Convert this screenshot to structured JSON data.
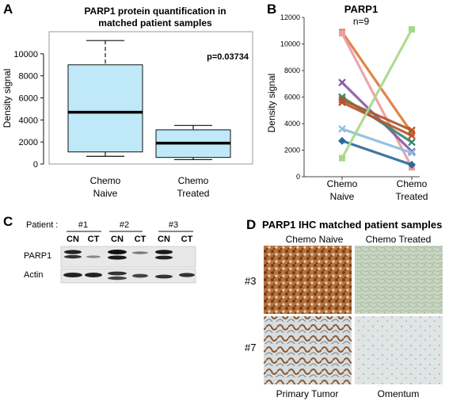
{
  "panels": {
    "a": {
      "letter": "A",
      "title_line1": "PARP1 protein quantification in",
      "title_line2": "matched patient samples",
      "pvalue": "p=0.03734"
    },
    "b": {
      "letter": "B",
      "title": "PARP1",
      "subtitle": "n=9"
    },
    "c": {
      "letter": "C",
      "patient_label": "Patient :",
      "patients": [
        "#1",
        "#2",
        "#3"
      ],
      "lane_labels": [
        "CN",
        "CT",
        "CN",
        "CT",
        "CN",
        "CT"
      ],
      "rows": [
        "PARP1",
        "Actin"
      ]
    },
    "d": {
      "letter": "D",
      "title": "PARP1 IHC matched patient samples",
      "col_labels": [
        "Chemo Naive",
        "Chemo Treated"
      ],
      "row_labels": [
        "#3",
        "#7"
      ],
      "bottom_labels": [
        "Primary Tumor",
        "Omentum"
      ]
    }
  },
  "chart_data": [
    {
      "type": "box",
      "ylabel": "Density signal",
      "ylim": [
        0,
        11500
      ],
      "yticks": [
        "0",
        "2000",
        "4000",
        "6000",
        "8000",
        "10000"
      ],
      "categories": [
        [
          "Chemo",
          "Naive"
        ],
        [
          "Chemo",
          "Treated"
        ]
      ],
      "boxes": [
        {
          "min": 700,
          "q1": 1100,
          "median": 4700,
          "q3": 9000,
          "max": 11200,
          "color": "#bfe9f8"
        },
        {
          "min": 400,
          "q1": 600,
          "median": 1900,
          "q3": 3100,
          "max": 3500,
          "color": "#bfe9f8"
        }
      ]
    },
    {
      "type": "line",
      "ylabel": "Density signal",
      "ylim": [
        0,
        12000
      ],
      "yticks": [
        "0",
        "2000",
        "4000",
        "6000",
        "8000",
        "10000",
        "12000"
      ],
      "categories": [
        [
          "Chemo",
          "Naive"
        ],
        [
          "Chemo",
          "Treated"
        ]
      ],
      "series": [
        {
          "values": [
            10900,
            3300
          ],
          "color": "#e07a3a",
          "marker": "square"
        },
        {
          "values": [
            10800,
            700
          ],
          "color": "#e8a0a0",
          "marker": "square"
        },
        {
          "values": [
            7100,
            1900
          ],
          "color": "#8a5aa8",
          "marker": "x"
        },
        {
          "values": [
            6000,
            2600
          ],
          "color": "#2f8f6a",
          "marker": "x"
        },
        {
          "values": [
            5800,
            3500
          ],
          "color": "#a85a2a",
          "marker": "x"
        },
        {
          "values": [
            5600,
            3100
          ],
          "color": "#c05030",
          "marker": "x"
        },
        {
          "values": [
            3600,
            1800
          ],
          "color": "#8fbde0",
          "marker": "x"
        },
        {
          "values": [
            2700,
            900
          ],
          "color": "#2c6a9a",
          "marker": "diamond"
        },
        {
          "values": [
            1400,
            11100
          ],
          "color": "#a8d88a",
          "marker": "square"
        }
      ]
    }
  ]
}
